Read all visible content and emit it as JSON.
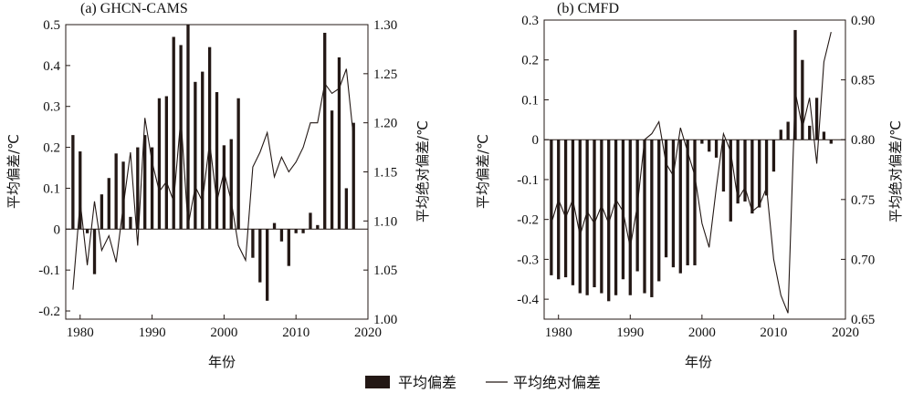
{
  "legend": {
    "bar_label": "平均偏差",
    "line_label": "平均绝对偏差"
  },
  "chart_data": [
    {
      "type": "bar+line",
      "title": "(a) GHCN-CAMS",
      "xlabel": "年份",
      "ylabel_left": "平均偏差/℃",
      "ylabel_right": "平均绝对偏差/℃",
      "xlim": [
        1978,
        2020
      ],
      "ylim_left": [
        -0.22,
        0.5
      ],
      "ylim_right": [
        1.0,
        1.3
      ],
      "xticks": [
        1980,
        1990,
        2000,
        2010,
        2020
      ],
      "yticks_left": [
        -0.2,
        -0.1,
        0,
        0.1,
        0.2,
        0.3,
        0.4,
        0.5
      ],
      "yticks_right": [
        1.0,
        1.05,
        1.1,
        1.15,
        1.2,
        1.25,
        1.3
      ],
      "years": [
        1979,
        1980,
        1981,
        1982,
        1983,
        1984,
        1985,
        1986,
        1987,
        1988,
        1989,
        1990,
        1991,
        1992,
        1993,
        1994,
        1995,
        1996,
        1997,
        1998,
        1999,
        2000,
        2001,
        2002,
        2003,
        2004,
        2005,
        2006,
        2007,
        2008,
        2009,
        2010,
        2011,
        2012,
        2013,
        2014,
        2015,
        2016,
        2017,
        2018
      ],
      "series": [
        {
          "name": "平均偏差",
          "kind": "bar",
          "values": [
            0.23,
            0.19,
            -0.01,
            -0.11,
            0.085,
            0.125,
            0.185,
            0.165,
            0.03,
            0.2,
            0.23,
            0.2,
            0.32,
            0.325,
            0.47,
            0.45,
            0.5,
            0.36,
            0.385,
            0.445,
            0.335,
            0.205,
            0.22,
            0.32,
            0.0,
            -0.07,
            -0.13,
            -0.175,
            0.015,
            -0.03,
            -0.09,
            -0.01,
            -0.01,
            0.04,
            0.01,
            0.48,
            0.29,
            0.42,
            0.1,
            0.26
          ]
        },
        {
          "name": "平均绝对偏差",
          "kind": "line",
          "values": [
            1.03,
            1.12,
            1.055,
            1.12,
            1.07,
            1.085,
            1.058,
            1.115,
            1.17,
            1.075,
            1.205,
            1.16,
            1.13,
            1.14,
            1.12,
            1.205,
            1.095,
            1.135,
            1.12,
            1.18,
            1.12,
            1.15,
            1.12,
            1.075,
            1.06,
            1.155,
            1.17,
            1.19,
            1.145,
            1.165,
            1.15,
            1.16,
            1.175,
            1.2,
            1.2,
            1.24,
            1.23,
            1.235,
            1.255,
            1.185
          ]
        }
      ]
    },
    {
      "type": "bar+line",
      "title": "(b) CMFD",
      "xlabel": "年份",
      "ylabel_left": "平均偏差/℃",
      "ylabel_right": "平均绝对偏差/℃",
      "xlim": [
        1978,
        2020
      ],
      "ylim_left": [
        -0.45,
        0.3
      ],
      "ylim_right": [
        0.65,
        0.9
      ],
      "xticks": [
        1980,
        1990,
        2000,
        2010,
        2020
      ],
      "yticks_left": [
        -0.4,
        -0.3,
        -0.2,
        -0.1,
        0,
        0.1,
        0.2,
        0.3
      ],
      "yticks_right": [
        0.65,
        0.7,
        0.75,
        0.8,
        0.85,
        0.9
      ],
      "years": [
        1979,
        1980,
        1981,
        1982,
        1983,
        1984,
        1985,
        1986,
        1987,
        1988,
        1989,
        1990,
        1991,
        1992,
        1993,
        1994,
        1995,
        1996,
        1997,
        1998,
        1999,
        2000,
        2001,
        2002,
        2003,
        2004,
        2005,
        2006,
        2007,
        2008,
        2009,
        2010,
        2011,
        2012,
        2013,
        2014,
        2015,
        2016,
        2017,
        2018
      ],
      "series": [
        {
          "name": "平均偏差",
          "kind": "bar",
          "values": [
            -0.34,
            -0.35,
            -0.345,
            -0.365,
            -0.385,
            -0.39,
            -0.37,
            -0.385,
            -0.405,
            -0.39,
            -0.35,
            -0.39,
            -0.33,
            -0.385,
            -0.395,
            -0.355,
            -0.295,
            -0.32,
            -0.335,
            -0.315,
            -0.315,
            -0.01,
            -0.03,
            -0.045,
            -0.13,
            -0.205,
            -0.16,
            -0.155,
            -0.185,
            -0.17,
            -0.14,
            -0.08,
            0.025,
            0.045,
            0.275,
            0.2,
            0.035,
            0.105,
            0.02,
            -0.01
          ]
        },
        {
          "name": "平均绝对偏差",
          "kind": "line",
          "values": [
            0.73,
            0.75,
            0.735,
            0.75,
            0.72,
            0.74,
            0.73,
            0.745,
            0.73,
            0.75,
            0.74,
            0.71,
            0.745,
            0.8,
            0.805,
            0.815,
            0.78,
            0.77,
            0.81,
            0.79,
            0.77,
            0.73,
            0.71,
            0.76,
            0.805,
            0.79,
            0.75,
            0.76,
            0.74,
            0.745,
            0.76,
            0.7,
            0.67,
            0.655,
            0.84,
            0.81,
            0.835,
            0.78,
            0.865,
            0.89
          ]
        }
      ]
    }
  ]
}
